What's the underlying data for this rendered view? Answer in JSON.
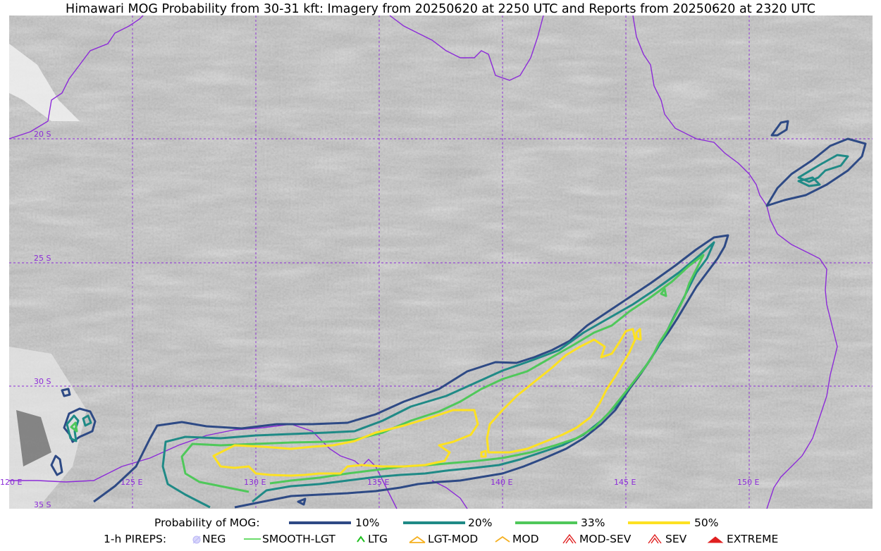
{
  "title": "Himawari MOG Probability from 30-31 kft: Imagery from 20250620 at 2250 UTC and Reports from 20250620 at 2320 UTC",
  "colors": {
    "p10": "#2e4a85",
    "p20": "#1f8a86",
    "p33": "#4fc85a",
    "p50": "#fde122",
    "coast": "#8c2bd8",
    "grid": "#8c2bd8"
  },
  "grid_labels": {
    "lat": [
      "20 S",
      "25 S",
      "30 S",
      "35 S"
    ],
    "lon": [
      "120 E",
      "125 E",
      "130 E",
      "135 E",
      "140 E",
      "145 E",
      "150 E"
    ]
  },
  "legend_probability": {
    "label": "Probability of MOG:",
    "items": [
      {
        "label": "10%",
        "color": "#2e4a85"
      },
      {
        "label": "20%",
        "color": "#1f8a86"
      },
      {
        "label": "33%",
        "color": "#4fc85a"
      },
      {
        "label": "50%",
        "color": "#fde122"
      }
    ]
  },
  "legend_pireps": {
    "label": "1-h PIREPS:",
    "items": [
      {
        "label": "NEG",
        "icon": "neg-icon",
        "color": "#b9b6f5"
      },
      {
        "label": "SMOOTH-LGT",
        "icon": "smooth-lgt-line-icon",
        "color": "#3ad13a"
      },
      {
        "label": "LTG",
        "icon": "ltg-caret-icon",
        "color": "#20c020"
      },
      {
        "label": "LGT-MOD",
        "icon": "lgt-mod-caret-icon",
        "color": "#f5b020"
      },
      {
        "label": "MOD",
        "icon": "mod-caret-icon",
        "color": "#f5b020"
      },
      {
        "label": "MOD-SEV",
        "icon": "mod-sev-caret-icon",
        "color": "#e02020"
      },
      {
        "label": "SEV",
        "icon": "sev-caret-icon",
        "color": "#e02020"
      },
      {
        "label": "EXTREME",
        "icon": "extreme-caret-icon",
        "color": "#e02020"
      }
    ]
  }
}
